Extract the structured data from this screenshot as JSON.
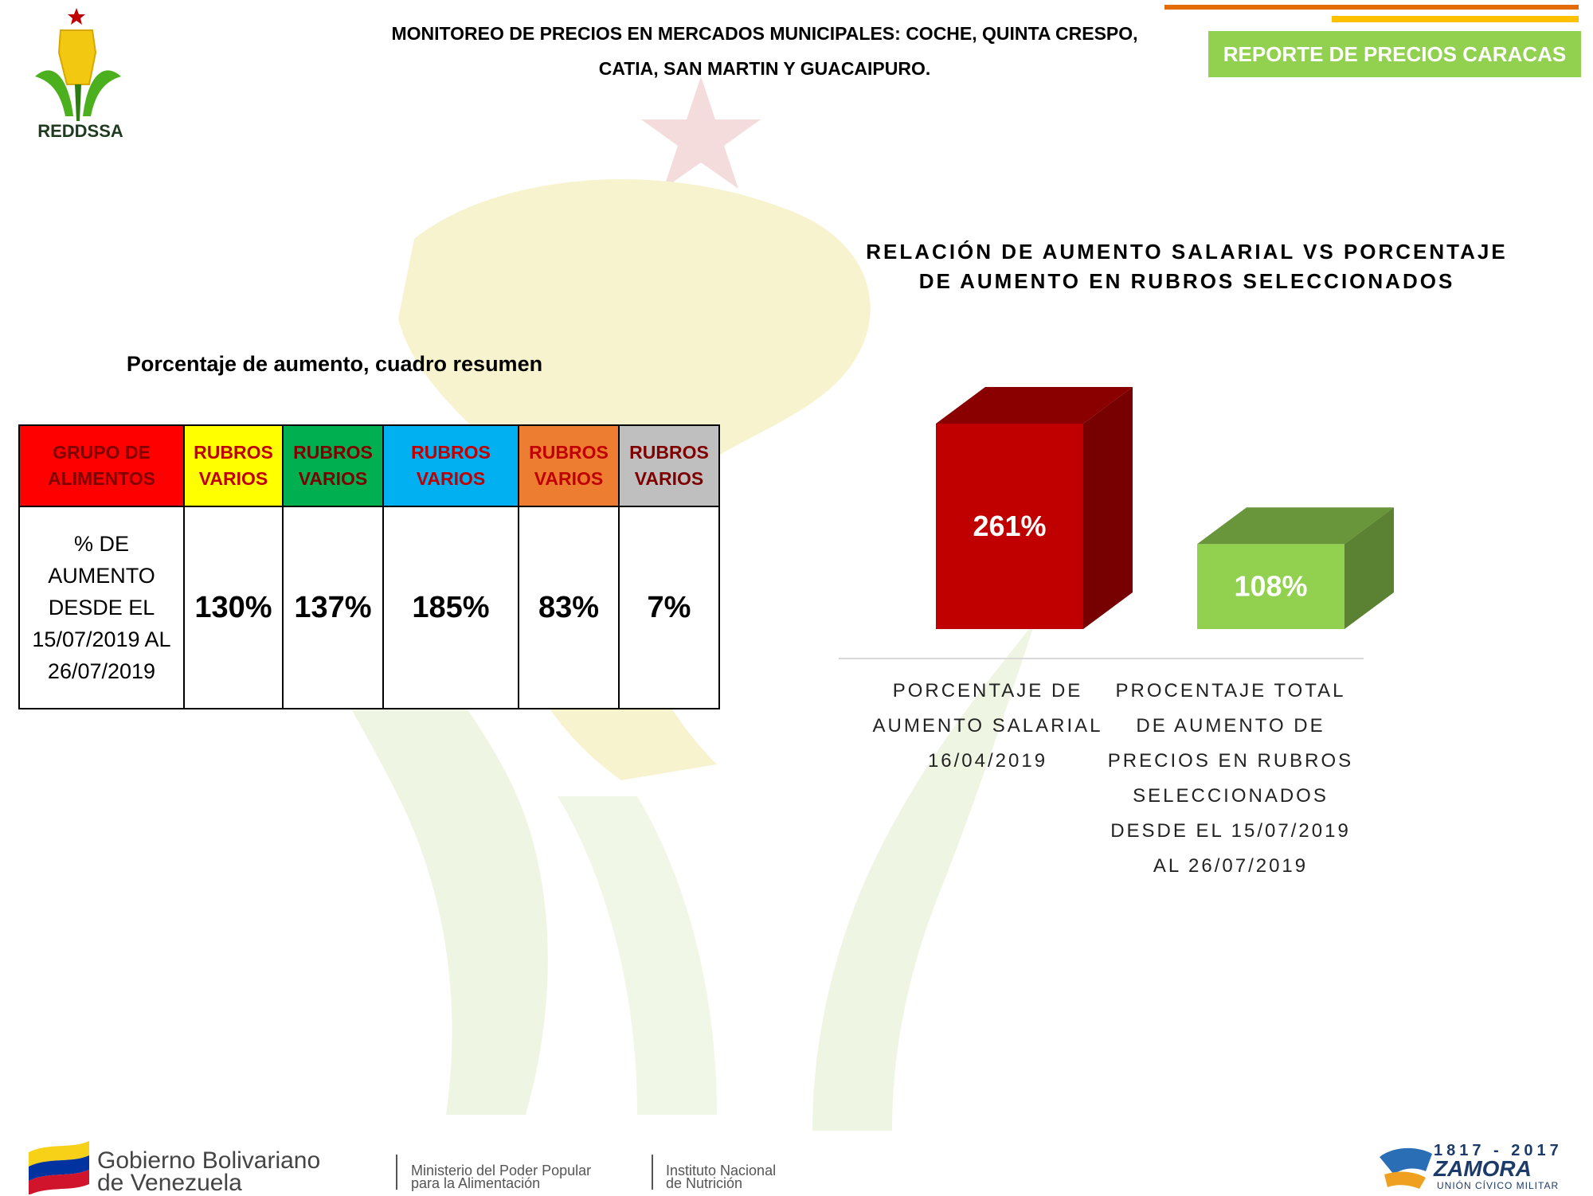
{
  "header": {
    "title_line1": "MONITOREO DE PRECIOS EN MERCADOS MUNICIPALES: COCHE, QUINTA CRESPO,",
    "title_line2": "CATIA, SAN MARTIN Y GUACAIPURO.",
    "badge": "REPORTE DE PRECIOS CARACAS",
    "logo_text": "REDDSSA"
  },
  "table": {
    "title": "Porcentaje de aumento, cuadro resumen",
    "header_label": [
      "GRUPO DE",
      "ALIMENTOS"
    ],
    "row_label": [
      "% DE",
      "AUMENTO",
      "DESDE EL",
      "15/07/2019 AL",
      "26/07/2019"
    ],
    "columns": [
      {
        "line1": "RUBROS",
        "line2": "VARIOS",
        "value": "130%",
        "color": "#ffff00",
        "text_color": "#c00000"
      },
      {
        "line1": "RUBROS",
        "line2": "VARIOS",
        "value": "137%",
        "color": "#00b050",
        "text_color": "#7f0000"
      },
      {
        "line1": "RUBROS",
        "line2": "VARIOS",
        "value": "185%",
        "color": "#00b0f0",
        "text_color": "#c00000"
      },
      {
        "line1": "RUBROS",
        "line2": "VARIOS",
        "value": "83%",
        "color": "#ed7d31",
        "text_color": "#c00000"
      },
      {
        "line1": "RUBROS",
        "line2": "VARIOS",
        "value": "7%",
        "color": "#bfbfbf",
        "text_color": "#7f0000"
      }
    ],
    "header_color": "#ff0000",
    "header_text_color": "#7f0000"
  },
  "chart_data": {
    "type": "bar",
    "title_line1": "RELACIÓN DE AUMENTO SALARIAL VS PORCENTAJE",
    "title_line2": "DE AUMENTO EN RUBROS SELECCIONADOS",
    "categories": [
      [
        "PORCENTAJE DE",
        "AUMENTO SALARIAL",
        "16/04/2019"
      ],
      [
        "PROCENTAJE TOTAL",
        "DE AUMENTO DE",
        "PRECIOS EN RUBROS",
        "SELECCIONADOS",
        "DESDE EL 15/07/2019",
        "AL 26/07/2019"
      ]
    ],
    "values": [
      261,
      108
    ],
    "data_labels": [
      "261%",
      "108%"
    ],
    "colors": [
      "#c00000",
      "#92d050"
    ],
    "ylim": [
      0,
      261
    ],
    "grid": false
  },
  "footer": {
    "gov_line1": "Gobierno Bolivariano",
    "gov_line2": "de Venezuela",
    "ministry_line1": "Ministerio del Poder Popular",
    "ministry_line2": "para la Alimentación",
    "institute_line1": "Instituto Nacional",
    "institute_line2": "de Nutrición",
    "zamora_years": "1817 - 2017",
    "zamora_name": "ZAMORA",
    "zamora_sub": "UNIÓN CÍVICO MILITAR"
  }
}
